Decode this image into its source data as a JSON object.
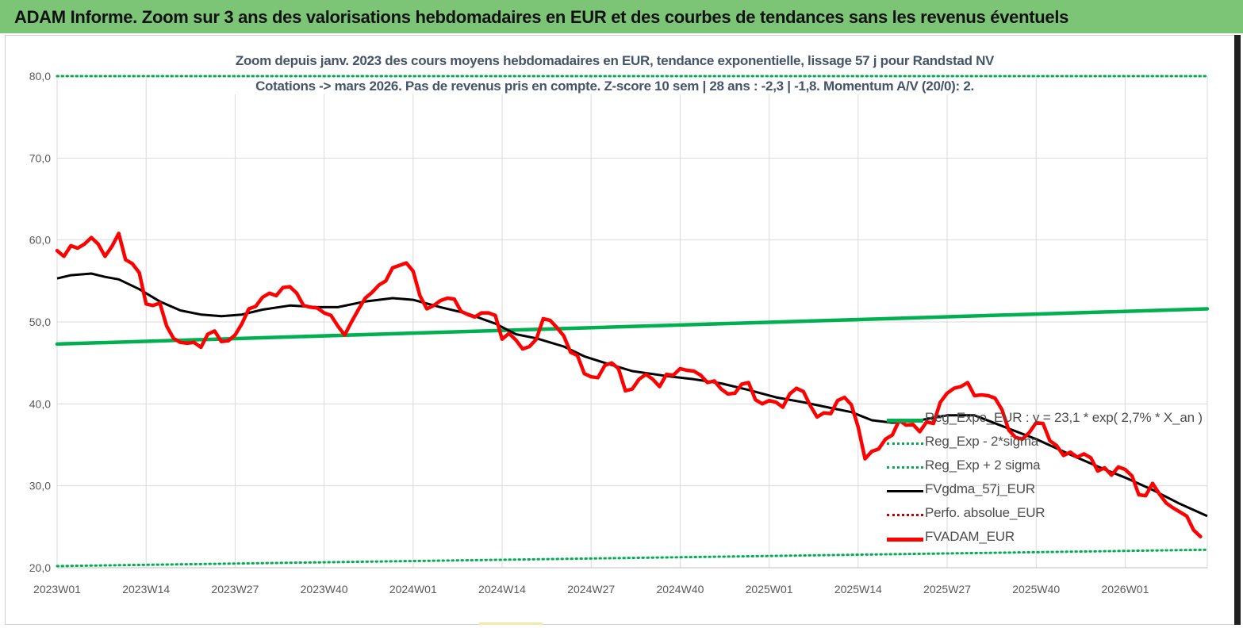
{
  "header": {
    "title": "ADAM Informe. Zoom sur 3 ans des valorisations hebdomadaires en EUR et des courbes de tendances sans les revenus éventuels"
  },
  "colors": {
    "header_bg": "#7cc576",
    "reg_expo": "#00b050",
    "fv_adam": "#ff0000",
    "fvgdma": "#000000",
    "perfo": "#c00000",
    "grid": "#d9d9d9",
    "subtitle_text": "#44546a"
  },
  "chart_data": {
    "type": "line",
    "title": "",
    "subtitle_lines": [
      "Zoom depuis janv. 2023 des cours moyens hebdomadaires en EUR, tendance exponentielle, lissage 57 j pour Randstad NV",
      "Cotations -> mars 2026. Pas de revenus pris en compte. Z-score 10 sem  | 28 ans : -2,3 | -1,8. Momentum A/V (20/0): 2."
    ],
    "xlabel": "",
    "ylabel": "",
    "ylim": [
      20,
      80
    ],
    "y_ticks": [
      "20,0",
      "30,0",
      "40,0",
      "50,0",
      "60,0",
      "70,0",
      "80,0"
    ],
    "x_ticks": [
      "2023W01",
      "2023W14",
      "2023W27",
      "2023W40",
      "2024W01",
      "2024W14",
      "2024W27",
      "2024W40",
      "2025W01",
      "2025W14",
      "2025W27",
      "2025W40",
      "2026W01"
    ],
    "grid": true,
    "legend_position": "right",
    "series": [
      {
        "name": "Reg_Expo_EUR : y = 23,1 * exp( 2,7% *  X_an )",
        "style": "thick-solid",
        "color": "#00b050",
        "points": [
          [
            "2023W01",
            47.3
          ],
          [
            "2026W13",
            51.6
          ]
        ]
      },
      {
        "name": "Reg_Exp - 2*sigma",
        "style": "dotted",
        "color": "#00b050",
        "points": [
          [
            "2023W01",
            20.2
          ],
          [
            "2026W13",
            22.2
          ]
        ]
      },
      {
        "name": "Reg_Exp + 2 sigma",
        "style": "dotted",
        "color": "#00b050",
        "points": [
          [
            "2023W01",
            80.0
          ],
          [
            "2026W13",
            80.0
          ]
        ]
      },
      {
        "name": "FVgdma_57j_EUR",
        "style": "solid",
        "color": "#000000",
        "points": [
          [
            "2023W01",
            55.3
          ],
          [
            "2023W03",
            55.7
          ],
          [
            "2023W06",
            55.9
          ],
          [
            "2023W08",
            55.5
          ],
          [
            "2023W10",
            55.2
          ],
          [
            "2023W13",
            54.0
          ],
          [
            "2023W16",
            52.5
          ],
          [
            "2023W19",
            51.4
          ],
          [
            "2023W22",
            50.9
          ],
          [
            "2023W25",
            50.7
          ],
          [
            "2023W28",
            50.9
          ],
          [
            "2023W31",
            51.5
          ],
          [
            "2023W35",
            52.0
          ],
          [
            "2023W39",
            51.8
          ],
          [
            "2023W42",
            51.8
          ],
          [
            "2023W46",
            52.5
          ],
          [
            "2023W50",
            52.9
          ],
          [
            "2024W01",
            52.7
          ],
          [
            "2024W05",
            51.8
          ],
          [
            "2024W09",
            51.0
          ],
          [
            "2024W13",
            49.8
          ],
          [
            "2024W16",
            48.5
          ],
          [
            "2024W19",
            48.0
          ],
          [
            "2024W23",
            47.0
          ],
          [
            "2024W26",
            45.8
          ],
          [
            "2024W29",
            45.0
          ],
          [
            "2024W33",
            44.0
          ],
          [
            "2024W38",
            43.4
          ],
          [
            "2024W42",
            43.0
          ],
          [
            "2024W46",
            42.5
          ],
          [
            "2024W50",
            41.7
          ],
          [
            "2025W02",
            40.8
          ],
          [
            "2025W06",
            40.2
          ],
          [
            "2025W10",
            39.5
          ],
          [
            "2025W13",
            39.0
          ],
          [
            "2025W16",
            38.0
          ],
          [
            "2025W19",
            37.7
          ],
          [
            "2025W23",
            38.0
          ],
          [
            "2025W27",
            38.6
          ],
          [
            "2025W31",
            38.6
          ],
          [
            "2025W35",
            37.3
          ],
          [
            "2025W40",
            35.7
          ],
          [
            "2025W45",
            33.8
          ],
          [
            "2025W50",
            32.0
          ],
          [
            "2026W01",
            31.0
          ],
          [
            "2026W05",
            29.5
          ],
          [
            "2026W09",
            27.8
          ],
          [
            "2026W13",
            26.3
          ]
        ]
      },
      {
        "name": "Perfo. absolue_EUR",
        "style": "dotted",
        "color": "#c00000",
        "points": []
      },
      {
        "name": "FVADAM_EUR",
        "style": "thick-solid",
        "color": "#ff0000",
        "points": [
          [
            "2023W01",
            58.7
          ],
          [
            "2023W02",
            58.0
          ],
          [
            "2023W03",
            59.3
          ],
          [
            "2023W04",
            59.0
          ],
          [
            "2023W05",
            59.5
          ],
          [
            "2023W06",
            60.3
          ],
          [
            "2023W07",
            59.5
          ],
          [
            "2023W08",
            58.0
          ],
          [
            "2023W09",
            59.2
          ],
          [
            "2023W10",
            60.8
          ],
          [
            "2023W11",
            57.6
          ],
          [
            "2023W12",
            57.1
          ],
          [
            "2023W13",
            56.0
          ],
          [
            "2023W14",
            52.2
          ],
          [
            "2023W15",
            52.0
          ],
          [
            "2023W16",
            52.3
          ],
          [
            "2023W17",
            49.5
          ],
          [
            "2023W18",
            48.0
          ],
          [
            "2023W19",
            47.5
          ],
          [
            "2023W20",
            47.4
          ],
          [
            "2023W21",
            47.5
          ],
          [
            "2023W22",
            46.9
          ],
          [
            "2023W23",
            48.5
          ],
          [
            "2023W24",
            48.9
          ],
          [
            "2023W25",
            47.6
          ],
          [
            "2023W26",
            47.7
          ],
          [
            "2023W27",
            48.4
          ],
          [
            "2023W28",
            49.8
          ],
          [
            "2023W29",
            51.6
          ],
          [
            "2023W30",
            51.9
          ],
          [
            "2023W31",
            53.0
          ],
          [
            "2023W32",
            53.5
          ],
          [
            "2023W33",
            53.2
          ],
          [
            "2023W34",
            54.2
          ],
          [
            "2023W35",
            54.3
          ],
          [
            "2023W36",
            53.5
          ],
          [
            "2023W37",
            52.0
          ],
          [
            "2023W38",
            51.8
          ],
          [
            "2023W39",
            51.7
          ],
          [
            "2023W40",
            51.1
          ],
          [
            "2023W41",
            50.8
          ],
          [
            "2023W42",
            49.5
          ],
          [
            "2023W43",
            48.4
          ],
          [
            "2023W44",
            50.0
          ],
          [
            "2023W45",
            51.5
          ],
          [
            "2023W46",
            52.9
          ],
          [
            "2023W47",
            53.6
          ],
          [
            "2023W48",
            54.5
          ],
          [
            "2023W49",
            55.0
          ],
          [
            "2023W50",
            56.6
          ],
          [
            "2023W51",
            56.9
          ],
          [
            "2023W52",
            57.2
          ],
          [
            "2024W01",
            56.2
          ],
          [
            "2024W02",
            53.2
          ],
          [
            "2024W03",
            51.6
          ],
          [
            "2024W04",
            52.0
          ],
          [
            "2024W05",
            52.6
          ],
          [
            "2024W06",
            52.9
          ],
          [
            "2024W07",
            52.8
          ],
          [
            "2024W08",
            51.3
          ],
          [
            "2024W09",
            50.9
          ],
          [
            "2024W10",
            50.6
          ],
          [
            "2024W11",
            51.1
          ],
          [
            "2024W12",
            51.1
          ],
          [
            "2024W13",
            50.8
          ],
          [
            "2024W14",
            47.9
          ],
          [
            "2024W15",
            48.6
          ],
          [
            "2024W16",
            47.8
          ],
          [
            "2024W17",
            46.7
          ],
          [
            "2024W18",
            47.0
          ],
          [
            "2024W19",
            47.9
          ],
          [
            "2024W20",
            50.4
          ],
          [
            "2024W21",
            50.2
          ],
          [
            "2024W22",
            49.3
          ],
          [
            "2024W23",
            48.3
          ],
          [
            "2024W24",
            46.3
          ],
          [
            "2024W25",
            45.9
          ],
          [
            "2024W26",
            43.7
          ],
          [
            "2024W27",
            43.3
          ],
          [
            "2024W28",
            43.2
          ],
          [
            "2024W29",
            44.7
          ],
          [
            "2024W30",
            45.0
          ],
          [
            "2024W31",
            44.3
          ],
          [
            "2024W32",
            41.6
          ],
          [
            "2024W33",
            41.8
          ],
          [
            "2024W34",
            43.0
          ],
          [
            "2024W35",
            43.6
          ],
          [
            "2024W36",
            43.0
          ],
          [
            "2024W37",
            42.1
          ],
          [
            "2024W38",
            43.6
          ],
          [
            "2024W39",
            43.5
          ],
          [
            "2024W40",
            44.3
          ],
          [
            "2024W41",
            44.1
          ],
          [
            "2024W42",
            44.0
          ],
          [
            "2024W43",
            43.5
          ],
          [
            "2024W44",
            42.6
          ],
          [
            "2024W45",
            42.8
          ],
          [
            "2024W46",
            41.8
          ],
          [
            "2024W47",
            41.2
          ],
          [
            "2024W48",
            41.3
          ],
          [
            "2024W49",
            42.4
          ],
          [
            "2024W50",
            42.6
          ],
          [
            "2024W51",
            40.5
          ],
          [
            "2024W52",
            40.0
          ],
          [
            "2025W01",
            40.4
          ],
          [
            "2025W02",
            40.2
          ],
          [
            "2025W03",
            39.6
          ],
          [
            "2025W04",
            41.2
          ],
          [
            "2025W05",
            41.9
          ],
          [
            "2025W06",
            41.5
          ],
          [
            "2025W07",
            39.8
          ],
          [
            "2025W08",
            38.4
          ],
          [
            "2025W09",
            38.9
          ],
          [
            "2025W10",
            38.8
          ],
          [
            "2025W11",
            40.4
          ],
          [
            "2025W12",
            40.8
          ],
          [
            "2025W13",
            39.9
          ],
          [
            "2025W14",
            37.2
          ],
          [
            "2025W15",
            33.3
          ],
          [
            "2025W16",
            34.2
          ],
          [
            "2025W17",
            34.5
          ],
          [
            "2025W18",
            35.7
          ],
          [
            "2025W19",
            36.2
          ],
          [
            "2025W20",
            38.0
          ],
          [
            "2025W21",
            37.4
          ],
          [
            "2025W22",
            37.5
          ],
          [
            "2025W23",
            36.6
          ],
          [
            "2025W24",
            37.8
          ],
          [
            "2025W25",
            37.6
          ],
          [
            "2025W26",
            40.2
          ],
          [
            "2025W27",
            41.3
          ],
          [
            "2025W28",
            41.9
          ],
          [
            "2025W29",
            42.1
          ],
          [
            "2025W30",
            42.6
          ],
          [
            "2025W31",
            41.0
          ],
          [
            "2025W32",
            41.1
          ],
          [
            "2025W33",
            41.0
          ],
          [
            "2025W34",
            40.7
          ],
          [
            "2025W35",
            39.3
          ],
          [
            "2025W36",
            36.8
          ],
          [
            "2025W37",
            35.9
          ],
          [
            "2025W38",
            35.7
          ],
          [
            "2025W39",
            36.5
          ],
          [
            "2025W40",
            37.7
          ],
          [
            "2025W41",
            37.6
          ],
          [
            "2025W42",
            35.5
          ],
          [
            "2025W43",
            34.9
          ],
          [
            "2025W44",
            33.7
          ],
          [
            "2025W45",
            34.1
          ],
          [
            "2025W46",
            33.5
          ],
          [
            "2025W47",
            33.9
          ],
          [
            "2025W48",
            33.4
          ],
          [
            "2025W49",
            31.8
          ],
          [
            "2025W50",
            32.2
          ],
          [
            "2025W51",
            31.3
          ],
          [
            "2025W52",
            32.3
          ],
          [
            "2026W01",
            32.0
          ],
          [
            "2026W02",
            31.2
          ],
          [
            "2026W03",
            28.9
          ],
          [
            "2026W04",
            28.8
          ],
          [
            "2026W05",
            30.3
          ],
          [
            "2026W06",
            29.0
          ],
          [
            "2026W07",
            27.9
          ],
          [
            "2026W08",
            27.3
          ],
          [
            "2026W09",
            26.8
          ],
          [
            "2026W10",
            26.3
          ],
          [
            "2026W11",
            24.6
          ],
          [
            "2026W12",
            23.8
          ]
        ]
      }
    ]
  }
}
